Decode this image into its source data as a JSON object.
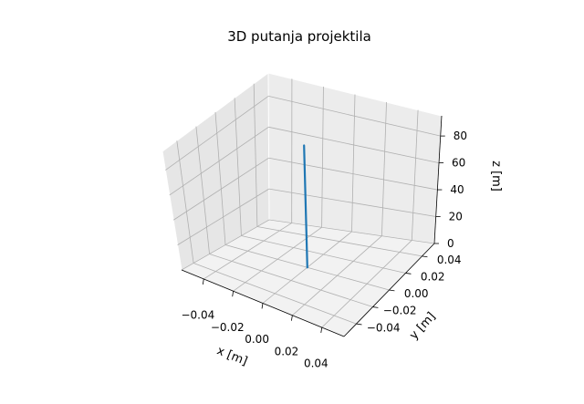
{
  "chart_data": {
    "type": "line",
    "projection": "3d",
    "title": "3D putanja projektila",
    "xlabel": "x [m]",
    "ylabel": "y [m]",
    "zlabel": "z [m]",
    "xlim": [
      -0.055,
      0.055
    ],
    "ylim": [
      -0.055,
      0.055
    ],
    "zlim": [
      0,
      95
    ],
    "x_ticks": [
      -0.04,
      -0.02,
      0.0,
      0.02,
      0.04
    ],
    "x_tick_labels": [
      "−0.04",
      "−0.02",
      "0.00",
      "0.02",
      "0.04"
    ],
    "y_ticks": [
      -0.04,
      -0.02,
      0.0,
      0.02,
      0.04
    ],
    "y_tick_labels": [
      "−0.04",
      "−0.02",
      "0.00",
      "0.02",
      "0.04"
    ],
    "z_ticks": [
      0,
      20,
      40,
      60,
      80
    ],
    "z_tick_labels": [
      "0",
      "20",
      "40",
      "60",
      "80"
    ],
    "grid": true,
    "series": [
      {
        "color": "#1f77b4",
        "x": [
          0,
          0
        ],
        "y": [
          0,
          0
        ],
        "z": [
          0,
          89
        ]
      }
    ]
  }
}
